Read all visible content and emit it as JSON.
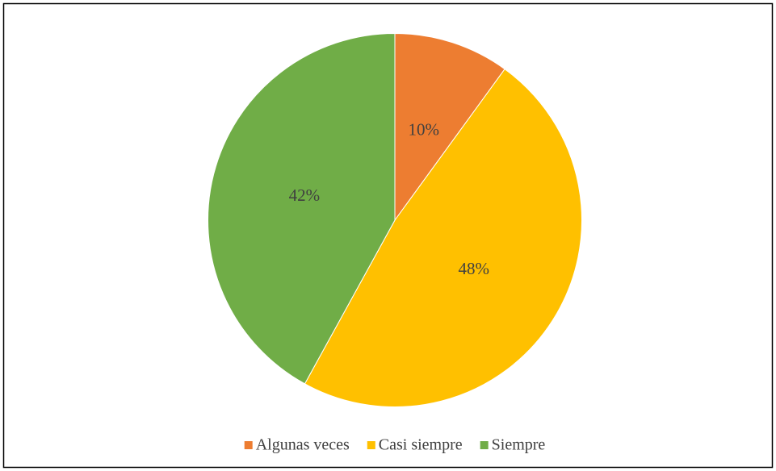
{
  "chart_data": {
    "type": "pie",
    "categories": [
      "Algunas veces",
      "Casi siempre",
      "Siempre"
    ],
    "values": [
      10,
      48,
      42
    ],
    "value_labels": [
      "10%",
      "48%",
      "42%"
    ],
    "colors": [
      "#ed7d31",
      "#ffc000",
      "#70ad47"
    ],
    "legend": "bottom"
  }
}
